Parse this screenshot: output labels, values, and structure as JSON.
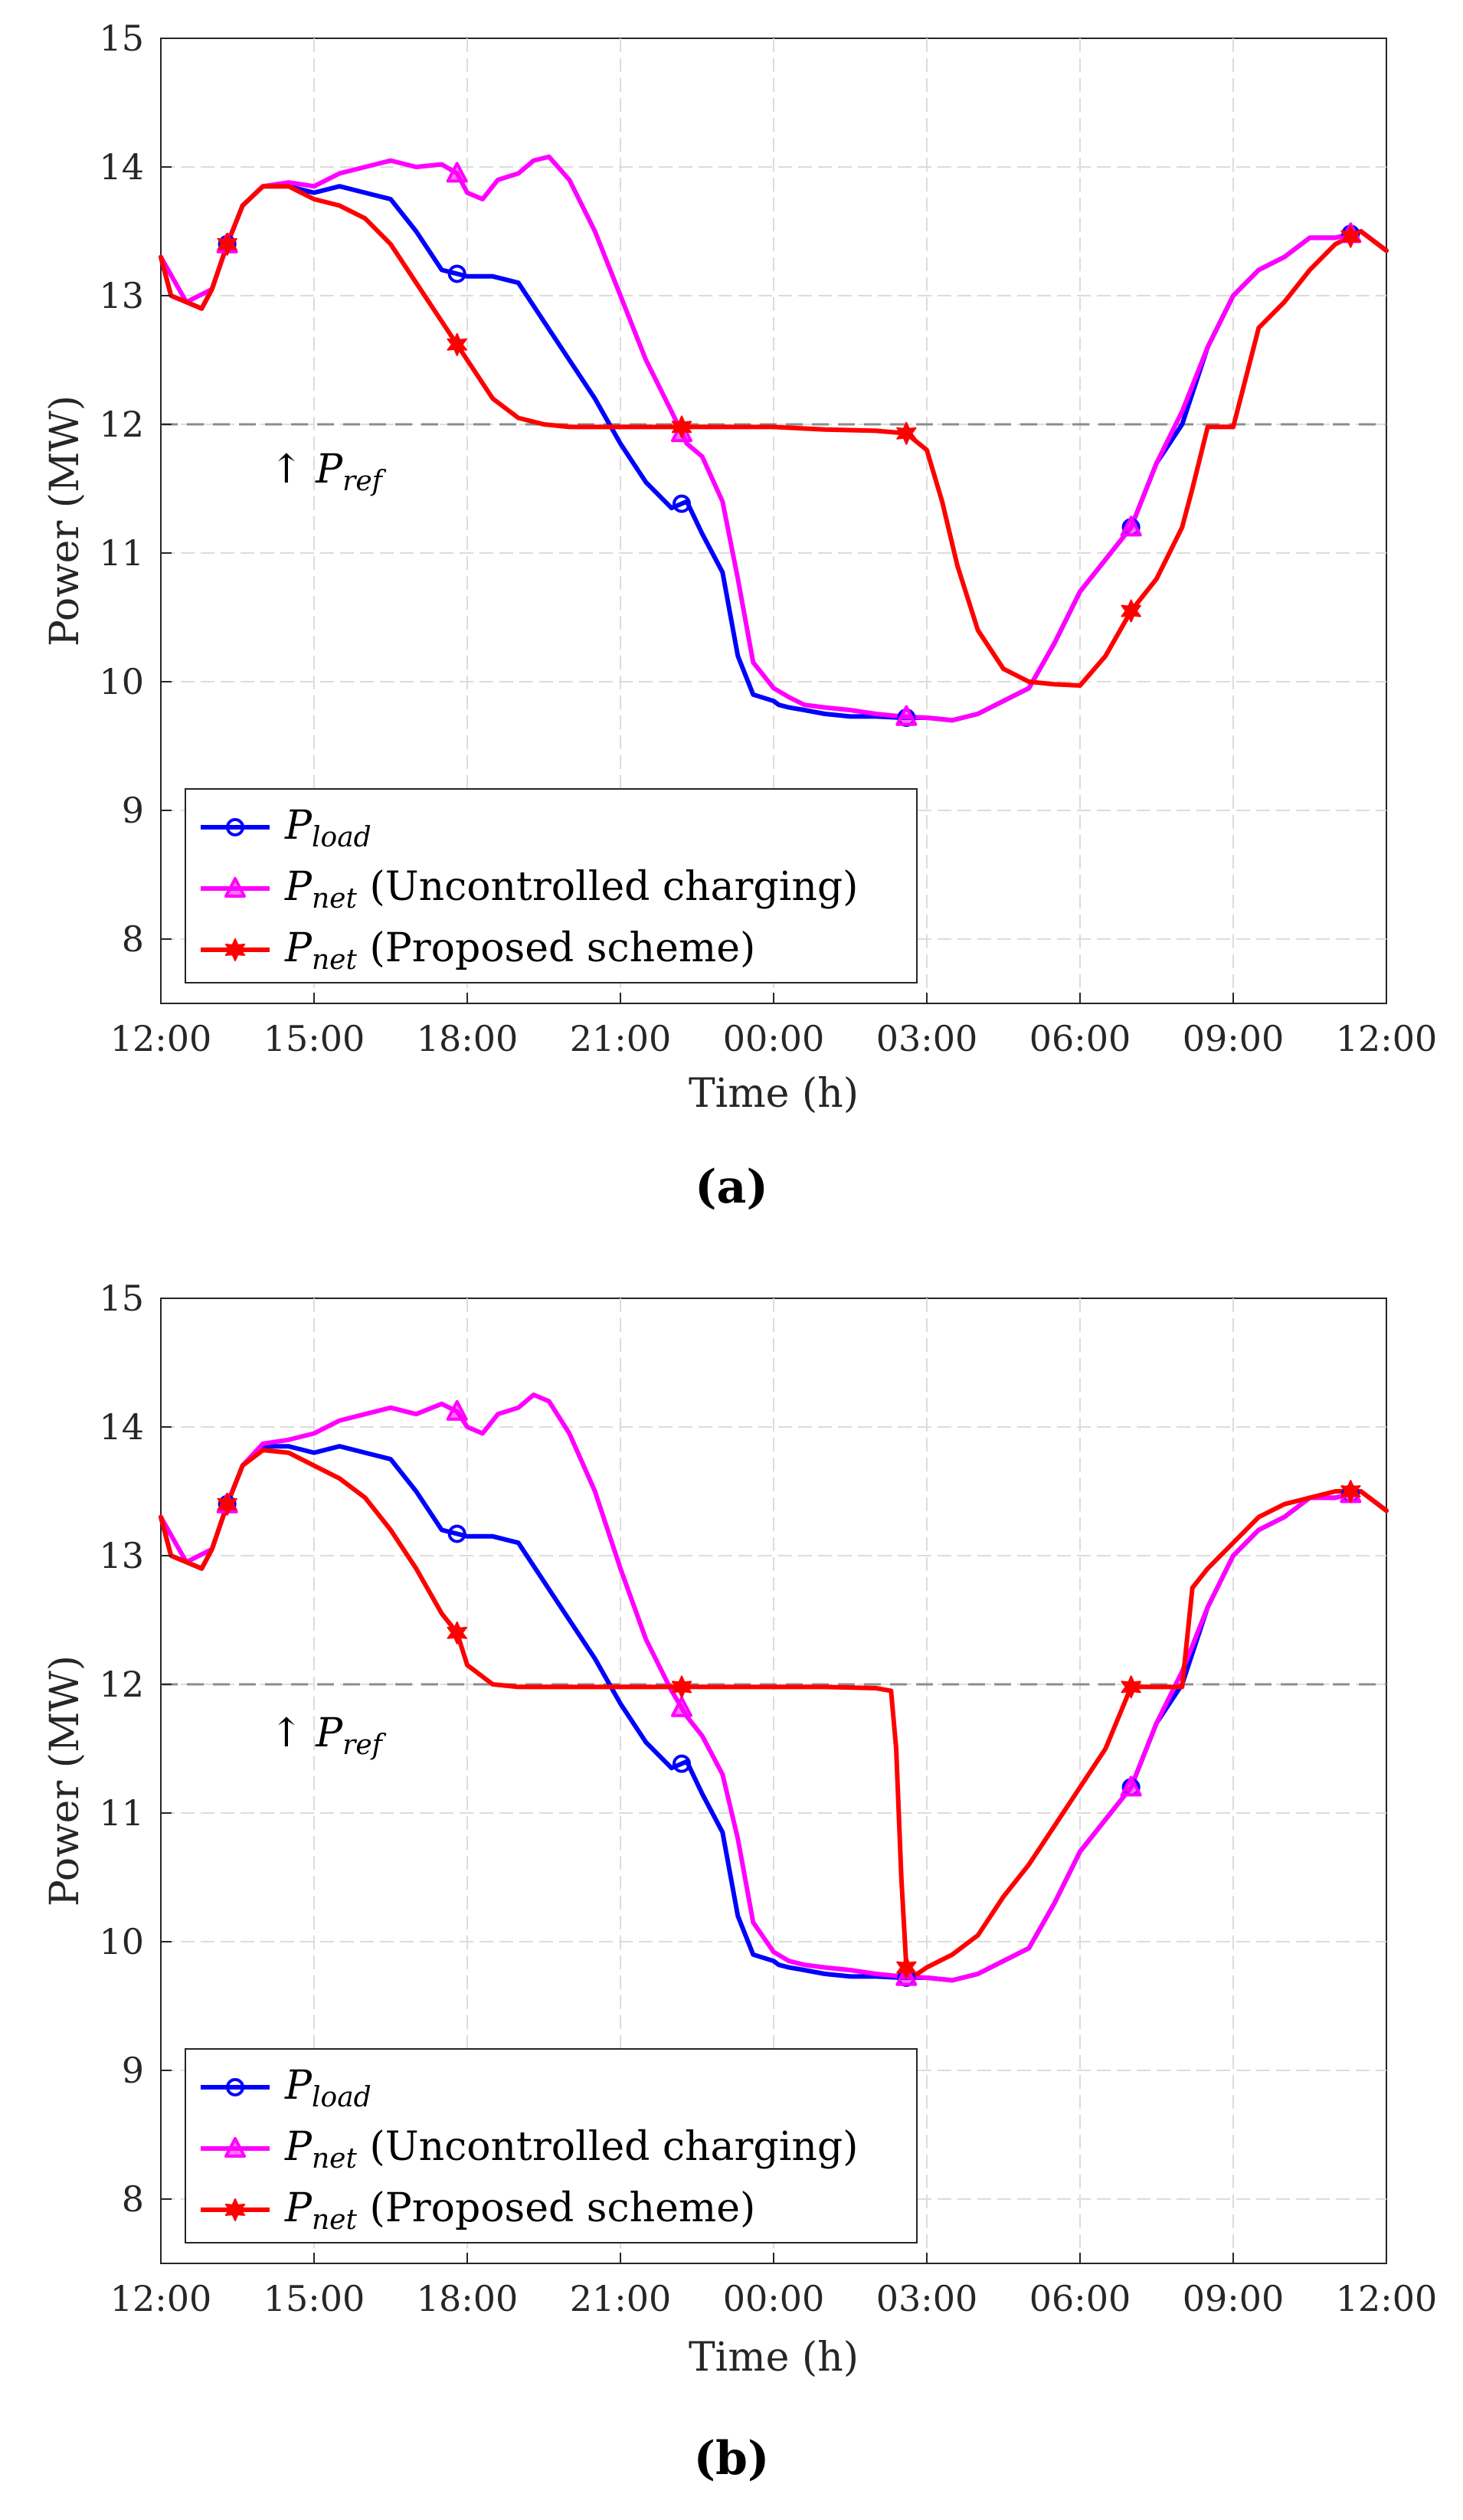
{
  "chart_data": [
    {
      "type": "line",
      "caption": "(a)",
      "xlabel": "Time (h)",
      "ylabel": "Power (MW)",
      "xticks": [
        "12:00",
        "15:00",
        "18:00",
        "21:00",
        "00:00",
        "03:00",
        "06:00",
        "09:00",
        "12:00"
      ],
      "xlim": [
        0,
        24
      ],
      "ylim": [
        7.5,
        15
      ],
      "yticks": [
        8,
        9,
        10,
        11,
        12,
        13,
        14,
        15
      ],
      "grid": true,
      "legend_position": "bottom-left",
      "reference": {
        "label": "P",
        "sub": "ref",
        "arrow": "↑",
        "value": 12
      },
      "series": [
        {
          "name": "P",
          "sub": "load",
          "suffix": "",
          "color": "#0000ff",
          "marker": "circle",
          "x": [
            0,
            0.2,
            0.5,
            0.8,
            1.0,
            1.3,
            1.6,
            2.0,
            2.5,
            3.0,
            3.5,
            4.0,
            4.5,
            5.0,
            5.5,
            6.0,
            6.5,
            7.0,
            7.5,
            8.0,
            8.5,
            9.0,
            9.5,
            10.0,
            10.3,
            10.6,
            11.0,
            11.3,
            11.6,
            12.0,
            12.1,
            12.3,
            12.6,
            13.0,
            13.5,
            14.0,
            14.5,
            15.0,
            15.5,
            16.0,
            16.5,
            17.0,
            17.5,
            18.0,
            19.0,
            19.5,
            20.0,
            20.5,
            21.0,
            21.5,
            22.0,
            22.5,
            23.0,
            23.5,
            24.0
          ],
          "y": [
            13.3,
            13.0,
            12.95,
            12.9,
            13.05,
            13.4,
            13.7,
            13.85,
            13.85,
            13.8,
            13.85,
            13.8,
            13.75,
            13.5,
            13.2,
            13.15,
            13.15,
            13.1,
            12.8,
            12.5,
            12.2,
            11.85,
            11.55,
            11.35,
            11.4,
            11.15,
            10.85,
            10.2,
            9.9,
            9.85,
            9.82,
            9.8,
            9.78,
            9.75,
            9.73,
            9.73,
            9.72,
            9.72,
            9.7,
            9.75,
            9.85,
            9.95,
            10.3,
            10.7,
            11.2,
            11.7,
            12.0,
            12.6,
            13.0,
            13.2,
            13.3,
            13.45,
            13.45,
            13.5,
            13.35
          ],
          "markers_x": [
            1.3,
            5.8,
            10.2,
            14.6,
            19.0,
            23.3
          ]
        },
        {
          "name": "P",
          "sub": "net",
          "suffix": " (Uncontrolled charging)",
          "color": "#ff00ff",
          "marker": "triangle",
          "x": [
            0,
            0.5,
            1.0,
            1.3,
            1.6,
            2.0,
            2.5,
            3.0,
            3.5,
            4.0,
            4.5,
            5.0,
            5.5,
            5.8,
            6.0,
            6.3,
            6.6,
            7.0,
            7.3,
            7.6,
            8.0,
            8.5,
            9.0,
            9.5,
            10.0,
            10.3,
            10.6,
            11.0,
            11.3,
            11.6,
            12.0,
            12.3,
            12.6,
            13.0,
            13.5,
            14.0,
            14.5,
            15.0,
            15.5,
            16.0,
            16.5,
            17.0,
            17.5,
            18.0,
            19.0,
            19.5,
            20.0,
            20.5,
            21.0,
            21.5,
            22.0,
            22.5,
            23.0,
            23.5,
            24.0
          ],
          "y": [
            13.3,
            12.95,
            13.05,
            13.4,
            13.7,
            13.85,
            13.88,
            13.85,
            13.95,
            14.0,
            14.05,
            14.0,
            14.02,
            13.95,
            13.8,
            13.75,
            13.9,
            13.95,
            14.05,
            14.08,
            13.9,
            13.5,
            13.0,
            12.5,
            12.1,
            11.85,
            11.75,
            11.4,
            10.8,
            10.15,
            9.95,
            9.88,
            9.82,
            9.8,
            9.78,
            9.75,
            9.73,
            9.72,
            9.7,
            9.75,
            9.85,
            9.95,
            10.3,
            10.7,
            11.2,
            11.7,
            12.1,
            12.6,
            13.0,
            13.2,
            13.3,
            13.45,
            13.45,
            13.5,
            13.35
          ],
          "markers_x": [
            1.3,
            5.8,
            10.2,
            14.6,
            19.0,
            23.3
          ]
        },
        {
          "name": "P",
          "sub": "net",
          "suffix": " (Proposed scheme)",
          "color": "#ff0000",
          "marker": "hexagram",
          "x": [
            0,
            0.2,
            0.5,
            0.8,
            1.0,
            1.3,
            1.6,
            2.0,
            2.5,
            3.0,
            3.5,
            4.0,
            4.5,
            5.0,
            5.5,
            6.0,
            6.5,
            7.0,
            7.5,
            8.0,
            9.0,
            10.0,
            11.0,
            12.0,
            13.0,
            14.0,
            14.6,
            15.0,
            15.3,
            15.6,
            16.0,
            16.5,
            17.0,
            17.5,
            18.0,
            18.5,
            19.0,
            19.5,
            20.0,
            20.2,
            20.5,
            21.0,
            21.5,
            22.0,
            22.5,
            23.0,
            23.5,
            24.0
          ],
          "y": [
            13.3,
            13.0,
            12.95,
            12.9,
            13.05,
            13.4,
            13.7,
            13.85,
            13.85,
            13.75,
            13.7,
            13.6,
            13.4,
            13.1,
            12.8,
            12.5,
            12.2,
            12.05,
            12.0,
            11.98,
            11.98,
            11.98,
            11.98,
            11.98,
            11.96,
            11.95,
            11.93,
            11.8,
            11.4,
            10.9,
            10.4,
            10.1,
            10.0,
            9.98,
            9.97,
            10.2,
            10.55,
            10.8,
            11.2,
            11.5,
            11.98,
            11.98,
            12.75,
            12.95,
            13.2,
            13.4,
            13.5,
            13.35
          ],
          "markers_x": [
            1.3,
            5.8,
            10.2,
            14.6,
            19.0,
            23.3
          ]
        }
      ]
    },
    {
      "type": "line",
      "caption": "(b)",
      "xlabel": "Time (h)",
      "ylabel": "Power (MW)",
      "xticks": [
        "12:00",
        "15:00",
        "18:00",
        "21:00",
        "00:00",
        "03:00",
        "06:00",
        "09:00",
        "12:00"
      ],
      "xlim": [
        0,
        24
      ],
      "ylim": [
        7.5,
        15
      ],
      "yticks": [
        8,
        9,
        10,
        11,
        12,
        13,
        14,
        15
      ],
      "grid": true,
      "legend_position": "bottom-left",
      "reference": {
        "label": "P",
        "sub": "ref",
        "arrow": "↑",
        "value": 12
      },
      "series": [
        {
          "name": "P",
          "sub": "load",
          "suffix": "",
          "color": "#0000ff",
          "marker": "circle",
          "x": [
            0,
            0.2,
            0.5,
            0.8,
            1.0,
            1.3,
            1.6,
            2.0,
            2.5,
            3.0,
            3.5,
            4.0,
            4.5,
            5.0,
            5.5,
            6.0,
            6.5,
            7.0,
            7.5,
            8.0,
            8.5,
            9.0,
            9.5,
            10.0,
            10.3,
            10.6,
            11.0,
            11.3,
            11.6,
            12.0,
            12.1,
            12.3,
            12.6,
            13.0,
            13.5,
            14.0,
            14.5,
            15.0,
            15.5,
            16.0,
            16.5,
            17.0,
            17.5,
            18.0,
            19.0,
            19.5,
            20.0,
            20.5,
            21.0,
            21.5,
            22.0,
            22.5,
            23.0,
            23.5,
            24.0
          ],
          "y": [
            13.3,
            13.0,
            12.95,
            12.9,
            13.05,
            13.4,
            13.7,
            13.85,
            13.85,
            13.8,
            13.85,
            13.8,
            13.75,
            13.5,
            13.2,
            13.15,
            13.15,
            13.1,
            12.8,
            12.5,
            12.2,
            11.85,
            11.55,
            11.35,
            11.4,
            11.15,
            10.85,
            10.2,
            9.9,
            9.85,
            9.82,
            9.8,
            9.78,
            9.75,
            9.73,
            9.73,
            9.72,
            9.72,
            9.7,
            9.75,
            9.85,
            9.95,
            10.3,
            10.7,
            11.2,
            11.7,
            12.0,
            12.6,
            13.0,
            13.2,
            13.3,
            13.45,
            13.45,
            13.5,
            13.35
          ],
          "markers_x": [
            1.3,
            5.8,
            10.2,
            14.6,
            19.0,
            23.3
          ]
        },
        {
          "name": "P",
          "sub": "net",
          "suffix": " (Uncontrolled charging)",
          "color": "#ff00ff",
          "marker": "triangle",
          "x": [
            0,
            0.5,
            1.0,
            1.3,
            1.6,
            2.0,
            2.5,
            3.0,
            3.5,
            4.0,
            4.5,
            5.0,
            5.5,
            5.8,
            6.0,
            6.3,
            6.6,
            7.0,
            7.3,
            7.6,
            8.0,
            8.5,
            9.0,
            9.5,
            10.0,
            10.3,
            10.6,
            11.0,
            11.3,
            11.6,
            12.0,
            12.3,
            12.6,
            13.0,
            13.5,
            14.0,
            14.5,
            15.0,
            15.5,
            16.0,
            16.5,
            17.0,
            17.5,
            18.0,
            19.0,
            19.5,
            20.0,
            20.5,
            21.0,
            21.5,
            22.0,
            22.5,
            23.0,
            23.5,
            24.0
          ],
          "y": [
            13.3,
            12.95,
            13.05,
            13.4,
            13.7,
            13.87,
            13.9,
            13.95,
            14.05,
            14.1,
            14.15,
            14.1,
            14.18,
            14.12,
            14.0,
            13.95,
            14.1,
            14.15,
            14.25,
            14.2,
            13.95,
            13.5,
            12.9,
            12.35,
            11.95,
            11.75,
            11.6,
            11.3,
            10.8,
            10.15,
            9.92,
            9.85,
            9.82,
            9.8,
            9.78,
            9.75,
            9.73,
            9.72,
            9.7,
            9.75,
            9.85,
            9.95,
            10.3,
            10.7,
            11.2,
            11.7,
            12.1,
            12.6,
            13.0,
            13.2,
            13.3,
            13.45,
            13.45,
            13.5,
            13.35
          ],
          "markers_x": [
            1.3,
            5.8,
            10.2,
            14.6,
            19.0,
            23.3
          ]
        },
        {
          "name": "P",
          "sub": "net",
          "suffix": " (Proposed scheme)",
          "color": "#ff0000",
          "marker": "hexagram",
          "x": [
            0,
            0.2,
            0.5,
            0.8,
            1.0,
            1.3,
            1.6,
            2.0,
            2.5,
            3.0,
            3.5,
            4.0,
            4.5,
            5.0,
            5.5,
            5.8,
            6.0,
            6.5,
            7.0,
            8.0,
            9.0,
            10.0,
            11.0,
            12.0,
            13.0,
            14.0,
            14.3,
            14.4,
            14.5,
            14.6,
            14.7,
            15.0,
            15.5,
            16.0,
            16.5,
            17.0,
            17.5,
            18.0,
            18.5,
            19.0,
            19.5,
            20.0,
            20.2,
            20.5,
            21.0,
            21.5,
            22.0,
            22.5,
            23.0,
            23.5,
            24.0
          ],
          "y": [
            13.3,
            13.0,
            12.95,
            12.9,
            13.05,
            13.4,
            13.7,
            13.82,
            13.8,
            13.7,
            13.6,
            13.45,
            13.2,
            12.9,
            12.55,
            12.4,
            12.15,
            12.0,
            11.98,
            11.98,
            11.98,
            11.98,
            11.98,
            11.98,
            11.98,
            11.97,
            11.95,
            11.5,
            10.5,
            9.8,
            9.72,
            9.8,
            9.9,
            10.05,
            10.35,
            10.6,
            10.9,
            11.2,
            11.5,
            11.98,
            11.98,
            11.98,
            12.75,
            12.9,
            13.1,
            13.3,
            13.4,
            13.45,
            13.5,
            13.5,
            13.35
          ],
          "markers_x": [
            1.3,
            5.8,
            10.2,
            14.6,
            19.0,
            23.3
          ]
        }
      ]
    }
  ]
}
